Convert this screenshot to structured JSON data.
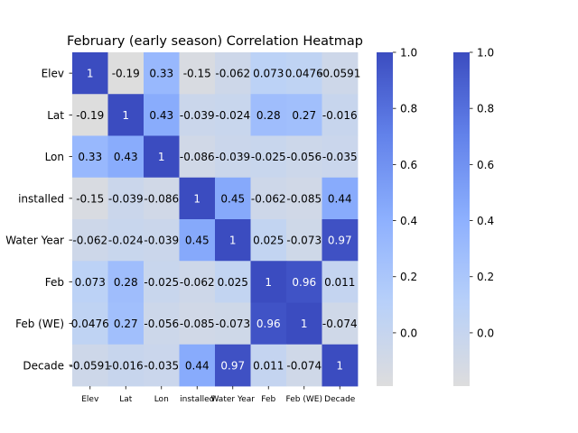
{
  "chart_data": {
    "type": "heatmap",
    "title": "February (early season) Correlation Heatmap",
    "xlabel": "",
    "ylabel": "",
    "row_labels": [
      "Elev",
      "Lat",
      "Lon",
      "installed",
      "Water Year",
      "Feb",
      "Feb (WE)",
      "Decade"
    ],
    "col_labels": [
      "Elev",
      "Lat",
      "Lon",
      "installed",
      "Water Year",
      "Feb",
      "Feb (WE)",
      "Decade"
    ],
    "cell_labels": [
      [
        "1",
        "-0.19",
        "0.33",
        "-0.15",
        "-0.062",
        "0.073",
        "0.0476",
        "-0.0591"
      ],
      [
        "-0.19",
        "1",
        "0.43",
        "-0.039",
        "-0.024",
        "0.28",
        "0.27",
        "-0.016"
      ],
      [
        "0.33",
        "0.43",
        "1",
        "-0.086",
        "-0.039",
        "-0.025",
        "-0.056",
        "-0.035"
      ],
      [
        "-0.15",
        "-0.039",
        "-0.086",
        "1",
        "0.45",
        "-0.062",
        "-0.085",
        "0.44"
      ],
      [
        "-0.062",
        "-0.024",
        "-0.039",
        "0.45",
        "1",
        "0.025",
        "-0.073",
        "0.97"
      ],
      [
        "0.073",
        "0.28",
        "-0.025",
        "-0.062",
        "0.025",
        "1",
        "0.96",
        "0.011"
      ],
      [
        "0.0476",
        "0.27",
        "-0.056",
        "-0.085",
        "-0.073",
        "0.96",
        "1",
        "-0.074"
      ],
      [
        "-0.0591",
        "-0.016",
        "-0.035",
        "0.44",
        "0.97",
        "0.011",
        "-0.074",
        "1"
      ]
    ],
    "values": [
      [
        1,
        -0.19,
        0.33,
        -0.15,
        -0.062,
        0.073,
        0.0476,
        -0.0591
      ],
      [
        -0.19,
        1,
        0.43,
        -0.039,
        -0.024,
        0.28,
        0.27,
        -0.016
      ],
      [
        0.33,
        0.43,
        1,
        -0.086,
        -0.039,
        -0.025,
        -0.056,
        -0.035
      ],
      [
        -0.15,
        -0.039,
        -0.086,
        1,
        0.45,
        -0.062,
        -0.085,
        0.44
      ],
      [
        -0.062,
        -0.024,
        -0.039,
        0.45,
        1,
        0.025,
        -0.073,
        0.97
      ],
      [
        0.073,
        0.28,
        -0.025,
        -0.062,
        0.025,
        1,
        0.96,
        0.011
      ],
      [
        0.0476,
        0.27,
        -0.056,
        -0.085,
        -0.073,
        0.96,
        1,
        -0.074
      ],
      [
        -0.0591,
        -0.016,
        -0.035,
        0.44,
        0.97,
        0.011,
        -0.074,
        1
      ]
    ],
    "colormap": "coolwarm",
    "vmin": -0.19,
    "vmax": 1,
    "colorbars": [
      {
        "ticks": [
          "0.0",
          "0.2",
          "0.4",
          "0.6",
          "0.8",
          "1.0"
        ],
        "tick_values": [
          0,
          0.2,
          0.4,
          0.6,
          0.8,
          1.0
        ]
      },
      {
        "ticks": [
          "0.0",
          "0.2",
          "0.4",
          "0.6",
          "0.8",
          "1.0"
        ],
        "tick_values": [
          0,
          0.2,
          0.4,
          0.6,
          0.8,
          1.0
        ]
      }
    ],
    "legend": "none",
    "grid": false
  }
}
